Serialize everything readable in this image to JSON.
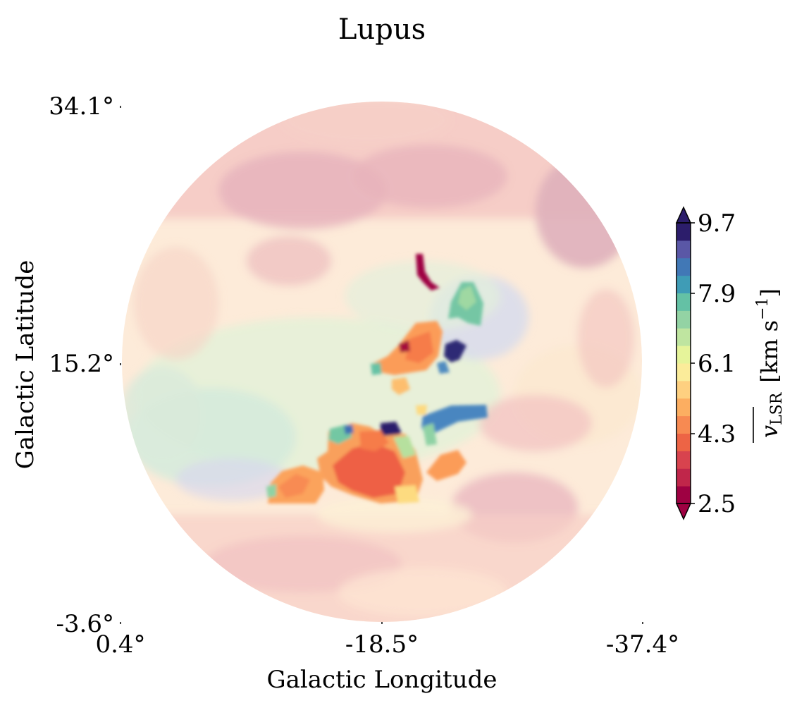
{
  "chart_data": {
    "type": "heatmap",
    "title": "Lupus",
    "xlabel": "Galactic Longitude",
    "ylabel": "Galactic Latitude",
    "x_ticks": [
      "0.4°",
      "-18.5°",
      "-37.4°"
    ],
    "y_ticks": [
      "34.1°",
      "15.2°",
      "-3.6°"
    ],
    "xlim": [
      0.4,
      -37.4
    ],
    "ylim": [
      -3.6,
      34.1
    ],
    "footprint": "circular",
    "colorbar": {
      "label_main": "v",
      "label_sub": "LSR",
      "label_unit_open": "[km s",
      "label_unit_sup": "−1",
      "label_unit_close": "]",
      "ticks": [
        "9.7",
        "7.9",
        "6.1",
        "4.3",
        "2.5"
      ],
      "range": [
        2.5,
        9.7
      ],
      "colormap": "Spectral",
      "extend": "both",
      "levels": 16
    }
  }
}
